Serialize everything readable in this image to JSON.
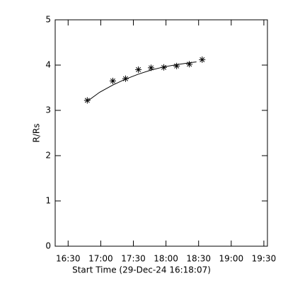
{
  "chart_data": {
    "type": "scatter",
    "x_label": "Start Time (29-Dec-24 16:18:07)",
    "y_label": "R/Rs",
    "xlim": [
      978.1,
      1173.3
    ],
    "ylim": [
      0,
      5
    ],
    "xticks": [
      {
        "value": 990,
        "label": "16:30"
      },
      {
        "value": 1020,
        "label": "17:00"
      },
      {
        "value": 1050,
        "label": "17:30"
      },
      {
        "value": 1080,
        "label": "18:00"
      },
      {
        "value": 1110,
        "label": "18:30"
      },
      {
        "value": 1140,
        "label": "19:00"
      },
      {
        "value": 1170,
        "label": "19:30"
      }
    ],
    "yticks": [
      0,
      1,
      2,
      3,
      4,
      5
    ],
    "series": [
      {
        "marker": "asterisk",
        "color": "#000000",
        "x": [
          1007.6,
          1031.1,
          1042.8,
          1054.6,
          1066.3,
          1078.0,
          1089.8,
          1101.5,
          1113.3
        ],
        "values": [
          3.22,
          3.65,
          3.7,
          3.9,
          3.94,
          3.95,
          3.98,
          4.02,
          4.12
        ]
      },
      {
        "marker": "line",
        "color": "#000000",
        "x": [
          1007.6,
          1019.0,
          1031.1,
          1042.8,
          1054.6,
          1066.3,
          1078.0,
          1089.8,
          1101.5,
          1108.0
        ],
        "values": [
          3.2,
          3.4,
          3.56,
          3.69,
          3.8,
          3.89,
          3.96,
          4.01,
          4.05,
          4.07
        ]
      }
    ]
  }
}
